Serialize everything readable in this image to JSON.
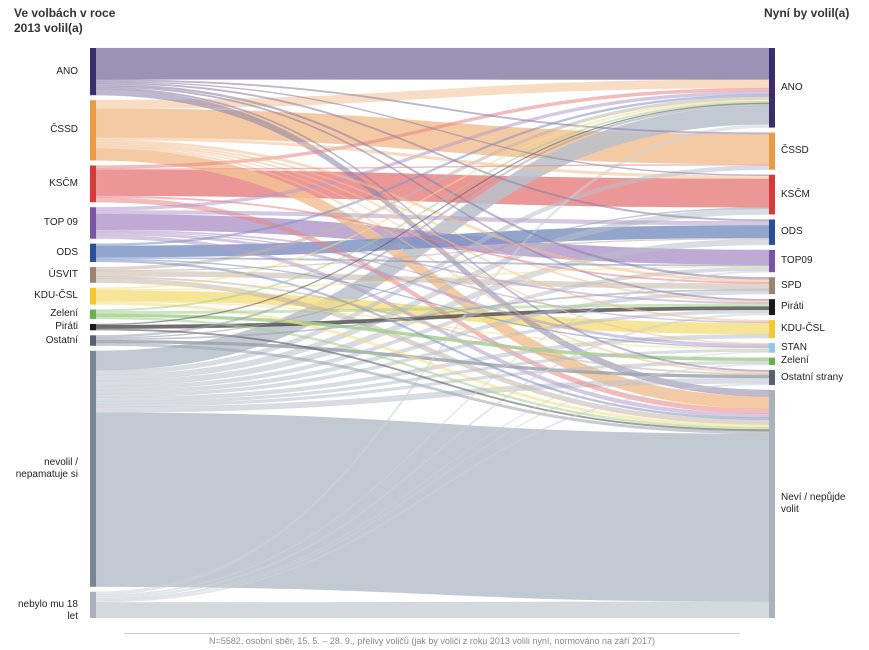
{
  "header": {
    "left_title": "Ve volbách v roce\n2013 volil(a)",
    "right_title": "Nyní by volil(a)"
  },
  "footer_note": "N=5582, osobní sběr, 15. 5. – 28. 9., přelivy voličů (jak by voliči z roku 2013 volili nyní, normováno na září 2017)",
  "left_nodes": [
    {
      "id": "ANO",
      "label": "ANO",
      "color": "#3b2c6b",
      "flow_color": "#8a80a8",
      "share": 9.0
    },
    {
      "id": "CSSD",
      "label": "ČSSD",
      "color": "#e89a45",
      "flow_color": "#f2c194",
      "share": 11.5
    },
    {
      "id": "KSCM",
      "label": "KSČM",
      "color": "#d63a3a",
      "flow_color": "#e88585",
      "share": 7.0
    },
    {
      "id": "TOP09",
      "label": "TOP 09",
      "color": "#7b54a3",
      "flow_color": "#b49bcb",
      "share": 6.0
    },
    {
      "id": "ODS",
      "label": "ODS",
      "color": "#2c4f9a",
      "flow_color": "#7f95c4",
      "share": 3.5
    },
    {
      "id": "USVIT",
      "label": "ÚSVIT",
      "color": "#9c8470",
      "flow_color": "#c4b4a7",
      "share": 3.0
    },
    {
      "id": "KDU",
      "label": "KDU-ČSL",
      "color": "#f2c830",
      "flow_color": "#f5df85",
      "share": 3.2
    },
    {
      "id": "ZELENI",
      "label": "Zelení",
      "color": "#6ab04c",
      "flow_color": "#a6d08f",
      "share": 1.8
    },
    {
      "id": "PIRATI",
      "label": "Piráti",
      "color": "#1a1a1a",
      "flow_color": "#555555",
      "share": 1.2
    },
    {
      "id": "OSTATNI",
      "label": "Ostatní",
      "color": "#5a6070",
      "flow_color": "#9ea3ae",
      "share": 2.0
    },
    {
      "id": "NEVOLIL",
      "label": "nevolil /\nnepamatuje si",
      "color": "#7a8594",
      "flow_color": "#b9c0ca",
      "share": 45.0
    },
    {
      "id": "NEBYLO",
      "label": "nebylo mu 18 let",
      "color": "#a9b1bc",
      "flow_color": "#cdd2d8",
      "share": 5.0
    }
  ],
  "right_nodes": [
    {
      "id": "ANO",
      "label": "ANO",
      "color": "#3b2c6b",
      "share": 15.0
    },
    {
      "id": "CSSD",
      "label": "ČSSD",
      "color": "#e89a45",
      "share": 7.0
    },
    {
      "id": "KSCM",
      "label": "KSČM",
      "color": "#d63a3a",
      "share": 7.5
    },
    {
      "id": "ODS",
      "label": "ODS",
      "color": "#2c4f9a",
      "share": 4.8
    },
    {
      "id": "TOP09",
      "label": "TOP09",
      "color": "#7b54a3",
      "share": 4.2
    },
    {
      "id": "SPD",
      "label": "SPD",
      "color": "#9c8470",
      "share": 3.2
    },
    {
      "id": "PIRATI",
      "label": "Piráti",
      "color": "#1a1a1a",
      "share": 3.0
    },
    {
      "id": "KDU",
      "label": "KDU-ČSL",
      "color": "#f2c830",
      "share": 3.4
    },
    {
      "id": "STAN",
      "label": "STAN",
      "color": "#8ec7ea",
      "share": 1.8
    },
    {
      "id": "ZELENI",
      "label": "Zelení",
      "color": "#6ab04c",
      "share": 1.4
    },
    {
      "id": "OSTATNI",
      "label": "Ostatní strany",
      "color": "#5a6070",
      "share": 2.8
    },
    {
      "id": "NEVI",
      "label": "Neví / nepůjde\nvolit",
      "color": "#a9b1bc",
      "share": 43.0
    }
  ],
  "flows": [
    {
      "source": "ANO",
      "target": "ANO",
      "value": 6.0
    },
    {
      "source": "ANO",
      "target": "NEVI",
      "value": 1.2
    },
    {
      "source": "ANO",
      "target": "CSSD",
      "value": 0.3
    },
    {
      "source": "ANO",
      "target": "ODS",
      "value": 0.3
    },
    {
      "source": "ANO",
      "target": "SPD",
      "value": 0.4
    },
    {
      "source": "ANO",
      "target": "PIRATI",
      "value": 0.3
    },
    {
      "source": "ANO",
      "target": "OSTATNI",
      "value": 0.3
    },
    {
      "source": "ANO",
      "target": "KSCM",
      "value": 0.2
    },
    {
      "source": "CSSD",
      "target": "ANO",
      "value": 1.6
    },
    {
      "source": "CSSD",
      "target": "CSSD",
      "value": 5.5
    },
    {
      "source": "CSSD",
      "target": "NEVI",
      "value": 2.3
    },
    {
      "source": "CSSD",
      "target": "KSCM",
      "value": 0.5
    },
    {
      "source": "CSSD",
      "target": "SPD",
      "value": 0.5
    },
    {
      "source": "CSSD",
      "target": "KDU",
      "value": 0.3
    },
    {
      "source": "CSSD",
      "target": "PIRATI",
      "value": 0.3
    },
    {
      "source": "CSSD",
      "target": "STAN",
      "value": 0.2
    },
    {
      "source": "CSSD",
      "target": "OSTATNI",
      "value": 0.3
    },
    {
      "source": "KSCM",
      "target": "KSCM",
      "value": 5.0
    },
    {
      "source": "KSCM",
      "target": "ANO",
      "value": 0.6
    },
    {
      "source": "KSCM",
      "target": "NEVI",
      "value": 0.9
    },
    {
      "source": "KSCM",
      "target": "SPD",
      "value": 0.3
    },
    {
      "source": "KSCM",
      "target": "CSSD",
      "value": 0.2
    },
    {
      "source": "TOP09",
      "target": "TOP09",
      "value": 3.0
    },
    {
      "source": "TOP09",
      "target": "ANO",
      "value": 0.6
    },
    {
      "source": "TOP09",
      "target": "ODS",
      "value": 0.7
    },
    {
      "source": "TOP09",
      "target": "STAN",
      "value": 0.5
    },
    {
      "source": "TOP09",
      "target": "PIRATI",
      "value": 0.3
    },
    {
      "source": "TOP09",
      "target": "NEVI",
      "value": 0.7
    },
    {
      "source": "TOP09",
      "target": "KDU",
      "value": 0.2
    },
    {
      "source": "ODS",
      "target": "ODS",
      "value": 2.2
    },
    {
      "source": "ODS",
      "target": "ANO",
      "value": 0.4
    },
    {
      "source": "ODS",
      "target": "TOP09",
      "value": 0.3
    },
    {
      "source": "ODS",
      "target": "NEVI",
      "value": 0.4
    },
    {
      "source": "ODS",
      "target": "STAN",
      "value": 0.2
    },
    {
      "source": "USVIT",
      "target": "SPD",
      "value": 1.0
    },
    {
      "source": "USVIT",
      "target": "ANO",
      "value": 0.6
    },
    {
      "source": "USVIT",
      "target": "NEVI",
      "value": 0.9
    },
    {
      "source": "USVIT",
      "target": "OSTATNI",
      "value": 0.3
    },
    {
      "source": "USVIT",
      "target": "ODS",
      "value": 0.2
    },
    {
      "source": "KDU",
      "target": "KDU",
      "value": 2.0
    },
    {
      "source": "KDU",
      "target": "ANO",
      "value": 0.3
    },
    {
      "source": "KDU",
      "target": "NEVI",
      "value": 0.5
    },
    {
      "source": "KDU",
      "target": "STAN",
      "value": 0.2
    },
    {
      "source": "KDU",
      "target": "TOP09",
      "value": 0.2
    },
    {
      "source": "ZELENI",
      "target": "ZELENI",
      "value": 0.6
    },
    {
      "source": "ZELENI",
      "target": "PIRATI",
      "value": 0.5
    },
    {
      "source": "ZELENI",
      "target": "NEVI",
      "value": 0.4
    },
    {
      "source": "ZELENI",
      "target": "ANO",
      "value": 0.3
    },
    {
      "source": "PIRATI",
      "target": "PIRATI",
      "value": 0.7
    },
    {
      "source": "PIRATI",
      "target": "NEVI",
      "value": 0.3
    },
    {
      "source": "PIRATI",
      "target": "ANO",
      "value": 0.2
    },
    {
      "source": "OSTATNI",
      "target": "OSTATNI",
      "value": 0.6
    },
    {
      "source": "OSTATNI",
      "target": "SPD",
      "value": 0.3
    },
    {
      "source": "OSTATNI",
      "target": "ANO",
      "value": 0.4
    },
    {
      "source": "OSTATNI",
      "target": "NEVI",
      "value": 0.5
    },
    {
      "source": "OSTATNI",
      "target": "KSCM",
      "value": 0.2
    },
    {
      "source": "NEVOLIL",
      "target": "NEVI",
      "value": 31.0
    },
    {
      "source": "NEVOLIL",
      "target": "ANO",
      "value": 3.5
    },
    {
      "source": "NEVOLIL",
      "target": "CSSD",
      "value": 0.8
    },
    {
      "source": "NEVOLIL",
      "target": "KSCM",
      "value": 1.0
    },
    {
      "source": "NEVOLIL",
      "target": "ODS",
      "value": 1.0
    },
    {
      "source": "NEVOLIL",
      "target": "TOP09",
      "value": 0.7
    },
    {
      "source": "NEVOLIL",
      "target": "SPD",
      "value": 0.7
    },
    {
      "source": "NEVOLIL",
      "target": "PIRATI",
      "value": 0.6
    },
    {
      "source": "NEVOLIL",
      "target": "KDU",
      "value": 0.7
    },
    {
      "source": "NEVOLIL",
      "target": "STAN",
      "value": 0.5
    },
    {
      "source": "NEVOLIL",
      "target": "ZELENI",
      "value": 0.5
    },
    {
      "source": "NEVOLIL",
      "target": "OSTATNI",
      "value": 1.0
    },
    {
      "source": "NEBYLO",
      "target": "NEVI",
      "value": 3.0
    },
    {
      "source": "NEBYLO",
      "target": "ANO",
      "value": 0.6
    },
    {
      "source": "NEBYLO",
      "target": "PIRATI",
      "value": 0.4
    },
    {
      "source": "NEBYLO",
      "target": "TOP09",
      "value": 0.3
    },
    {
      "source": "NEBYLO",
      "target": "ZELENI",
      "value": 0.2
    },
    {
      "source": "NEBYLO",
      "target": "OSTATNI",
      "value": 0.3
    },
    {
      "source": "NEBYLO",
      "target": "STAN",
      "value": 0.2
    }
  ]
}
